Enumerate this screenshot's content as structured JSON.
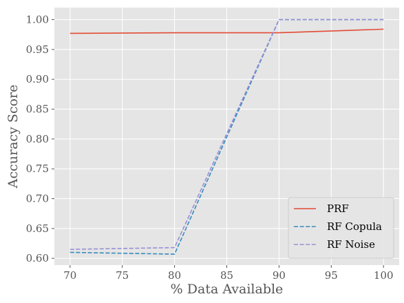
{
  "chart_data": {
    "type": "line",
    "xlabel": "% Data Available",
    "ylabel": "Accuracy Score",
    "xlim": [
      68.5,
      101.5
    ],
    "ylim": [
      0.5886,
      1.0202
    ],
    "x_ticks": [
      70,
      75,
      80,
      85,
      90,
      95,
      100
    ],
    "x_tick_labels": [
      "70",
      "75",
      "80",
      "85",
      "90",
      "95",
      "100"
    ],
    "y_ticks": [
      0.6,
      0.65,
      0.7,
      0.75,
      0.8,
      0.85,
      0.9,
      0.95,
      1.0
    ],
    "y_tick_labels": [
      "0.60",
      "0.65",
      "0.70",
      "0.75",
      "0.80",
      "0.85",
      "0.90",
      "0.95",
      "1.00"
    ],
    "grid": true,
    "legend_position": "bottom-right",
    "series": [
      {
        "name": "PRF",
        "x": [
          70,
          80,
          90,
          100
        ],
        "values": [
          0.977,
          0.978,
          0.978,
          0.984
        ],
        "color": "#E24A33",
        "dash": "solid"
      },
      {
        "name": "RF Copula",
        "x": [
          70,
          80,
          90,
          100
        ],
        "values": [
          0.61,
          0.607,
          1.0,
          1.0
        ],
        "color": "#348ABD",
        "dash": "dashed"
      },
      {
        "name": "RF Noise",
        "x": [
          70,
          80,
          90,
          100
        ],
        "values": [
          0.615,
          0.618,
          1.0,
          1.0
        ],
        "color": "#988ED5",
        "dash": "dashed"
      }
    ]
  }
}
